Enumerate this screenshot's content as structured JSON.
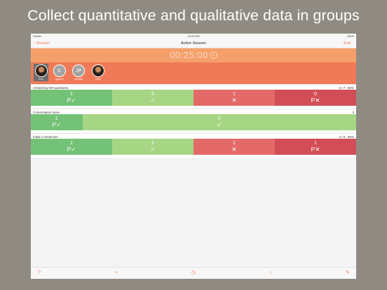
{
  "headline": "Collect quantitative and qualitative data in groups",
  "status_bar": {
    "carrier": "Carrier",
    "time": "12:03 PM",
    "battery": "100%"
  },
  "nav": {
    "back_label": "Session",
    "title": "Active Session",
    "end_label": "End"
  },
  "timer": {
    "value": "00:25:00",
    "icon": "stopwatch-icon"
  },
  "participants": [
    {
      "name": "Eric",
      "initials": "",
      "photo": true,
      "selected": true
    },
    {
      "name": "Ignacio",
      "initials": "IL",
      "photo": false,
      "selected": false
    },
    {
      "name": "Jennifer",
      "initials": "JP",
      "photo": false,
      "selected": false
    },
    {
      "name": "Kelly",
      "initials": "",
      "photo": true,
      "selected": false
    }
  ],
  "goals": [
    {
      "label": "Answering WH questions",
      "score": "6 / 7 : 86%",
      "cells": [
        {
          "count": "1",
          "symbol": "P✓",
          "color": "#74c277"
        },
        {
          "count": "5",
          "symbol": "✓",
          "color": "#a6d684"
        },
        {
          "count": "1",
          "symbol": "✕",
          "color": "#e46a6a"
        },
        {
          "count": "0",
          "symbol": "P✕",
          "color": "#d24e57"
        }
      ]
    },
    {
      "label": "Conversation turns",
      "score": "3",
      "cells": [
        {
          "count": "1",
          "symbol": "P✓",
          "color": "#74c277"
        },
        {
          "count": "2",
          "symbol": "✓",
          "color": "#a6d684"
        }
      ]
    },
    {
      "label": "Initial s sentences",
      "score": "3 / 5 : 60%",
      "cells": [
        {
          "count": "1",
          "symbol": "P✓",
          "color": "#74c277"
        },
        {
          "count": "2",
          "symbol": "✓",
          "color": "#a6d684"
        },
        {
          "count": "1",
          "symbol": "✕",
          "color": "#e46a6a"
        },
        {
          "count": "1",
          "symbol": "P✕",
          "color": "#d24e57"
        }
      ]
    }
  ],
  "toolbar": {
    "icons": [
      "help-icon",
      "add-note-icon",
      "timer-icon",
      "loading-icon",
      "compose-icon"
    ],
    "glyphs": [
      "?",
      "+",
      "◷",
      "○",
      "✎"
    ]
  },
  "colors": {
    "accent": "#ef7a5b",
    "timer_bg": "#f5a06a",
    "participants_bg": "#f07a58"
  }
}
